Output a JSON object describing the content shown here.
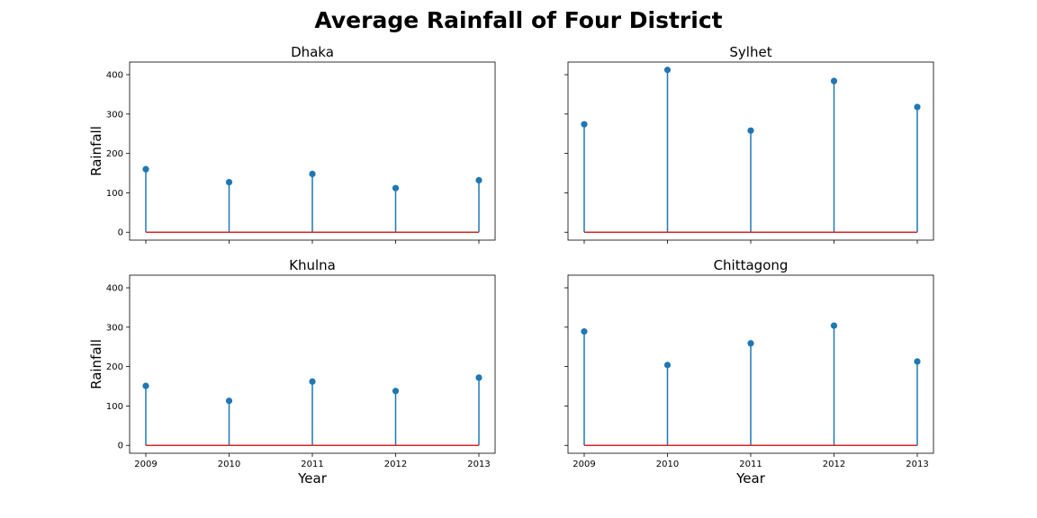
{
  "figure": {
    "title": "Average Rainfall of Four District"
  },
  "chart_data": [
    {
      "type": "stem",
      "title": "Dhaka",
      "categories": [
        2009,
        2010,
        2011,
        2012,
        2013
      ],
      "values": [
        160,
        127,
        148,
        112,
        132
      ],
      "ylabel": "Rainfall",
      "xlabel": "",
      "ylim": [
        -20,
        432
      ],
      "yticks": [
        0,
        100,
        200,
        300,
        400
      ],
      "show_x_ticklabels": false,
      "show_y_ticklabels": true
    },
    {
      "type": "stem",
      "title": "Sylhet",
      "categories": [
        2009,
        2010,
        2011,
        2012,
        2013
      ],
      "values": [
        274,
        412,
        258,
        384,
        318
      ],
      "ylabel": "",
      "xlabel": "",
      "ylim": [
        -20,
        432
      ],
      "yticks": [
        0,
        100,
        200,
        300,
        400
      ],
      "show_x_ticklabels": false,
      "show_y_ticklabels": false
    },
    {
      "type": "stem",
      "title": "Khulna",
      "categories": [
        2009,
        2010,
        2011,
        2012,
        2013
      ],
      "values": [
        151,
        113,
        162,
        138,
        172
      ],
      "ylabel": "Rainfall",
      "xlabel": "Year",
      "ylim": [
        -20,
        432
      ],
      "yticks": [
        0,
        100,
        200,
        300,
        400
      ],
      "show_x_ticklabels": true,
      "show_y_ticklabels": true
    },
    {
      "type": "stem",
      "title": "Chittagong",
      "categories": [
        2009,
        2010,
        2011,
        2012,
        2013
      ],
      "values": [
        289,
        204,
        259,
        304,
        213
      ],
      "ylabel": "",
      "xlabel": "Year",
      "ylim": [
        -20,
        432
      ],
      "yticks": [
        0,
        100,
        200,
        300,
        400
      ],
      "show_x_ticklabels": true,
      "show_y_ticklabels": false
    }
  ],
  "colors": {
    "stem": "#1f77b4",
    "baseline": "#d62728",
    "frame": "#000000"
  }
}
